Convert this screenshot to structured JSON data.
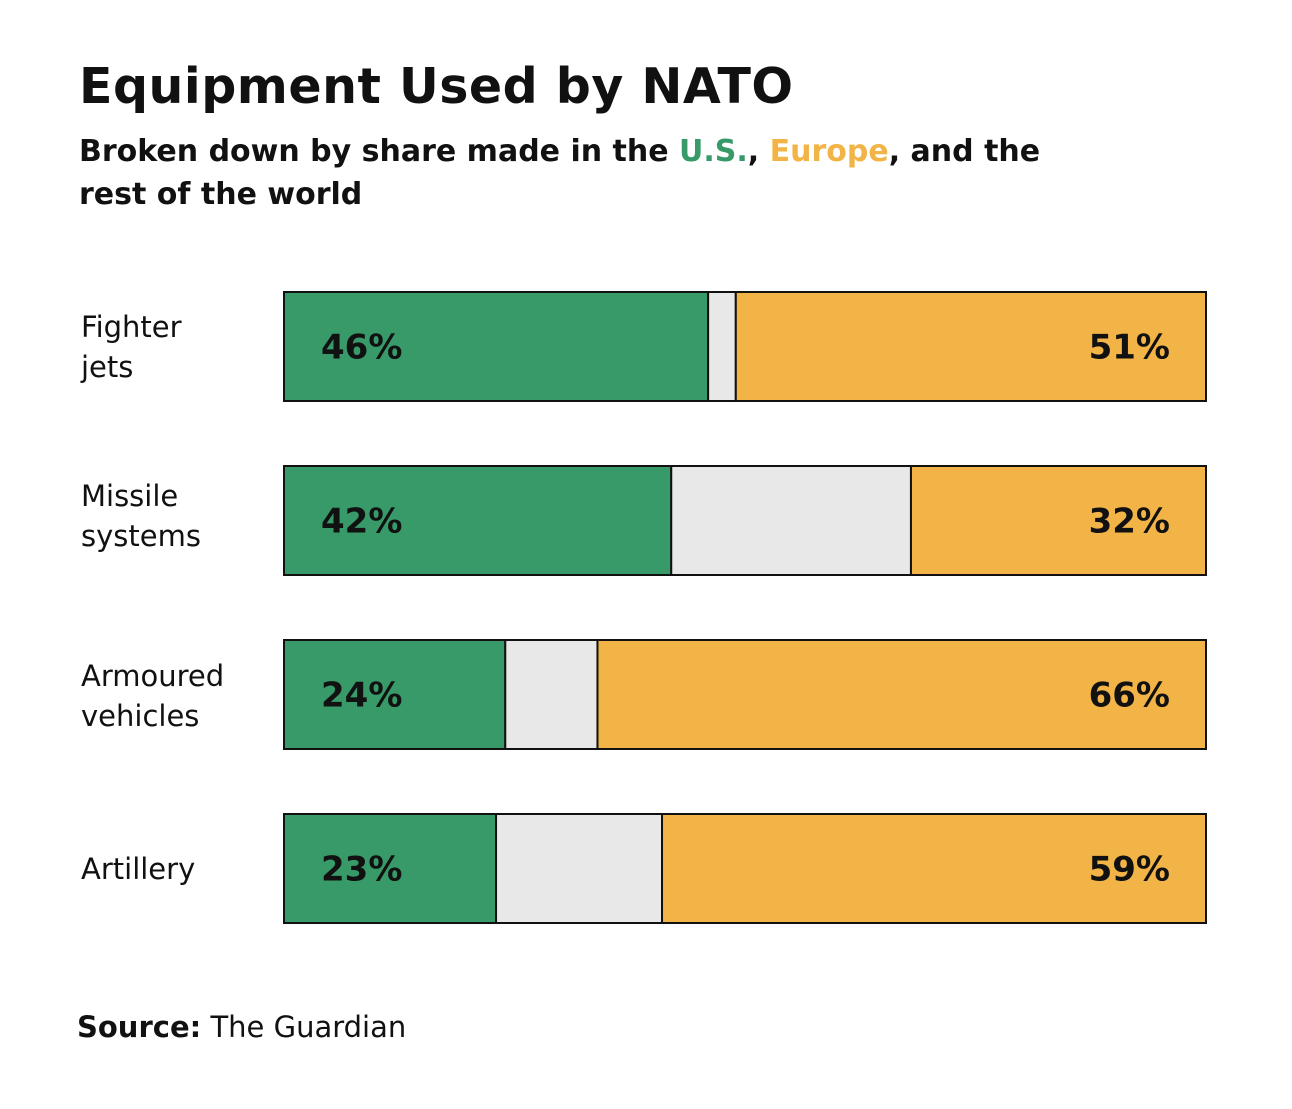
{
  "title": "Equipment Used by NATO",
  "subtitle": {
    "prefix": "Broken down by share made in the ",
    "us": "U.S.",
    "sep1": ", ",
    "europe": "Europe",
    "suffix": ", and the rest of the world"
  },
  "source": {
    "label": "Source:",
    "value": "The Guardian"
  },
  "colors": {
    "us": "#379a68",
    "europe": "#f2b447",
    "rest": "#e8e8e8",
    "outline": "#111111"
  },
  "chart_data": {
    "type": "bar",
    "orientation": "horizontal-stacked-100",
    "categories": [
      "Fighter jets",
      "Missile systems",
      "Armoured vehicles",
      "Artillery"
    ],
    "series": [
      {
        "name": "U.S.",
        "values": [
          46,
          42,
          24,
          23
        ],
        "labels": [
          "46%",
          "42%",
          "24%",
          "23%"
        ]
      },
      {
        "name": "Rest of the world",
        "values": [
          3,
          26,
          10,
          18
        ]
      },
      {
        "name": "Europe",
        "values": [
          51,
          32,
          66,
          59
        ],
        "labels": [
          "51%",
          "32%",
          "66%",
          "59%"
        ]
      }
    ],
    "xlim": [
      0,
      100
    ]
  }
}
